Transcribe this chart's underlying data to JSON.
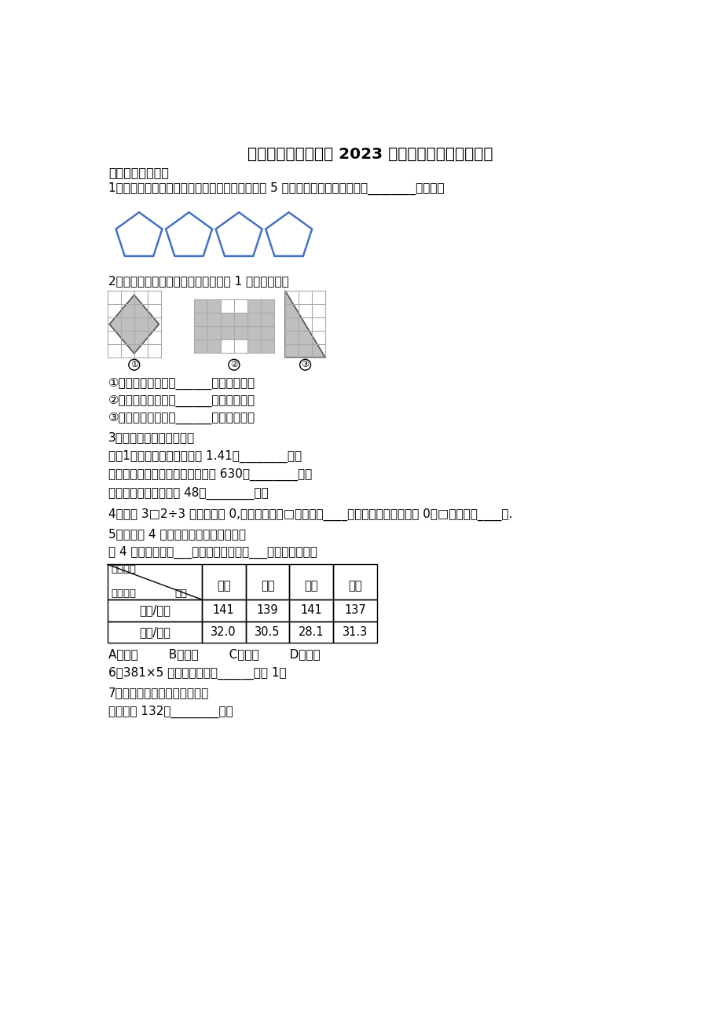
{
  "title": "河北省保定市涞源县 2023 年数学三下期末统考试题",
  "bg_color": "#ffffff",
  "text_color": "#000000",
  "pentagon_color": "#4472C4",
  "lines": [
    "一、神奇小帮手。",
    "1．下图中的每个五边形的边长都相同，每条边长 5 厘米。这个图形的周长是（________）厘米。",
    "2．写出下面各图形的面积（每小格为 1 平方厘米）。",
    "①中图形的面积是（______）平方厘米。",
    "②中图形的面积是（______）平方厘米。",
    "③中图形的面积是（______）平方厘米。",
    "3．填上合适的单位名称。",
    "三（1）班学生王宁的身高是 1.41（________）。",
    "她使用的数学课本封面的面积约为 630（________）。",
    "她所在教室的面积约为 48（________）。",
    "4．要使 3□2÷3 的商中间有 0,且没有余数，□里应填（____），要使商末尾有两个 0，□里应填（____）.",
    "5．下面是 4 位同学的体检情况统计表。",
    "这 4 位同学中，（___）的体重最重，（___）的身高最矮。"
  ],
  "table_col_names": [
    "小红",
    "小亮",
    "小芳",
    "小雅"
  ],
  "table_row_labels": [
    "身高/厘米",
    "体重/千克"
  ],
  "table_data": [
    [
      "141",
      "139",
      "141",
      "137"
    ],
    [
      "32.0",
      "30.5",
      "28.1",
      "31.3"
    ]
  ],
  "abcd_line": "A．小红        B．小亮        C．小芳        D．小雅",
  "q6": "6．381×5 的积的末尾有（______）个 1．",
  "q7_title": "7．在括号里填上适当的单位。",
  "q7_line": "小明身高 132（________）；",
  "circle_labels": [
    "①",
    "②",
    "③"
  ],
  "pent_color": "#4472C4",
  "grid_color": "#888888",
  "shape_fill": "#b8b8b8"
}
